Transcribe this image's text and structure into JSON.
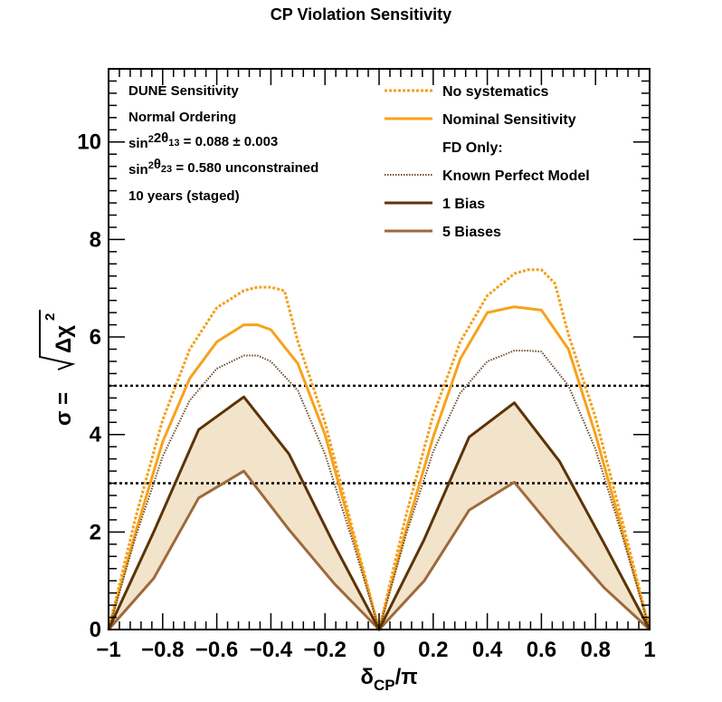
{
  "chart_data": {
    "type": "line",
    "title": "CP Violation Sensitivity",
    "xlabel": {
      "main": "δ",
      "sub": "CP",
      "suffix": "/π"
    },
    "ylabel": {
      "prefix": "σ = ",
      "radicand": "Δχ",
      "sup": "2"
    },
    "xlim": [
      -1,
      1
    ],
    "ylim": [
      0,
      11.5
    ],
    "xticks": [
      -1,
      -0.8,
      -0.6,
      -0.4,
      -0.2,
      0,
      0.2,
      0.4,
      0.6,
      0.8,
      1
    ],
    "xtick_labels": [
      "−1",
      "−0.8",
      "−0.6",
      "−0.4",
      "−0.2",
      "0",
      "0.2",
      "0.4",
      "0.6",
      "0.8",
      "1"
    ],
    "yticks": [
      0,
      2,
      4,
      6,
      8,
      10
    ],
    "ytick_labels": [
      "0",
      "2",
      "4",
      "6",
      "8",
      "10"
    ],
    "reference_lines": [
      3,
      5
    ],
    "info_text": [
      {
        "parts": [
          {
            "t": "DUNE Sensitivity"
          }
        ]
      },
      {
        "parts": [
          {
            "t": "Normal Ordering"
          }
        ]
      },
      {
        "parts": [
          {
            "t": "sin"
          },
          {
            "t": "2",
            "sup": true
          },
          {
            "t": "2θ"
          },
          {
            "t": "13",
            "sub": true
          },
          {
            "t": " = 0.088 ± 0.003"
          }
        ]
      },
      {
        "parts": [
          {
            "t": "sin"
          },
          {
            "t": "2",
            "sup": true
          },
          {
            "t": "θ"
          },
          {
            "t": "23",
            "sub": true
          },
          {
            "t": " = 0.580 unconstrained"
          }
        ]
      },
      {
        "parts": [
          {
            "t": "10 years (staged)"
          }
        ]
      }
    ],
    "legend": [
      {
        "label": "No systematics",
        "color": "#f2a01e",
        "style": "dotted",
        "series": "no_syst"
      },
      {
        "label": "Nominal Sensitivity",
        "color": "#f7a21b",
        "style": "solid",
        "series": "nominal"
      },
      {
        "label": "FD Only:",
        "header": true
      },
      {
        "label": "Known Perfect Model",
        "color": "#6b4e2e",
        "style": "fine-dotted",
        "series": "perfect"
      },
      {
        "label": "1 Bias",
        "color": "#5c3306",
        "style": "solid",
        "series": "bias1"
      },
      {
        "label": "5 Biases",
        "color": "#9c6a3b",
        "style": "solid",
        "series": "bias5"
      }
    ],
    "band": {
      "between": [
        "bias1",
        "bias5"
      ],
      "color": "#f2e3cb"
    },
    "series": [
      {
        "id": "no_syst",
        "name": "No systematics",
        "color": "#f2a01e",
        "style": "dotted",
        "x": [
          -1,
          -0.9,
          -0.8,
          -0.7,
          -0.6,
          -0.5,
          -0.45,
          -0.4,
          -0.35,
          -0.3,
          -0.2,
          -0.1,
          0,
          0.1,
          0.2,
          0.3,
          0.4,
          0.5,
          0.55,
          0.6,
          0.65,
          0.7,
          0.8,
          0.9,
          1
        ],
        "y": [
          0,
          2.3,
          4.3,
          5.75,
          6.6,
          6.95,
          7.02,
          7.02,
          6.95,
          5.9,
          4.25,
          2.1,
          0,
          2.35,
          4.4,
          5.9,
          6.85,
          7.3,
          7.38,
          7.38,
          7.1,
          6.05,
          4.35,
          2.2,
          0
        ]
      },
      {
        "id": "nominal",
        "name": "Nominal Sensitivity",
        "color": "#f7a21b",
        "style": "solid",
        "x": [
          -1,
          -0.9,
          -0.8,
          -0.7,
          -0.6,
          -0.5,
          -0.45,
          -0.4,
          -0.3,
          -0.2,
          -0.1,
          0,
          0.1,
          0.2,
          0.3,
          0.4,
          0.5,
          0.6,
          0.7,
          0.8,
          0.9,
          1
        ],
        "y": [
          0,
          2.0,
          3.85,
          5.15,
          5.9,
          6.25,
          6.25,
          6.15,
          5.45,
          4.0,
          2.0,
          0,
          2.05,
          3.95,
          5.55,
          6.5,
          6.62,
          6.55,
          5.75,
          4.0,
          2.0,
          0
        ]
      },
      {
        "id": "perfect",
        "name": "Known Perfect Model",
        "color": "#6b4e2e",
        "style": "fine-dotted",
        "x": [
          -1,
          -0.9,
          -0.8,
          -0.7,
          -0.6,
          -0.5,
          -0.45,
          -0.4,
          -0.3,
          -0.2,
          -0.1,
          0,
          0.1,
          0.2,
          0.3,
          0.4,
          0.5,
          0.55,
          0.6,
          0.7,
          0.8,
          0.9,
          1
        ],
        "y": [
          0,
          1.9,
          3.55,
          4.7,
          5.35,
          5.62,
          5.62,
          5.5,
          4.9,
          3.6,
          1.85,
          0,
          1.95,
          3.65,
          4.85,
          5.5,
          5.72,
          5.72,
          5.7,
          5.0,
          3.7,
          1.9,
          0
        ]
      },
      {
        "id": "bias1",
        "name": "1 Bias",
        "color": "#5c3306",
        "style": "solid",
        "x": [
          -1,
          -0.833,
          -0.667,
          -0.5,
          -0.333,
          -0.167,
          0,
          0.167,
          0.333,
          0.5,
          0.667,
          0.833,
          1
        ],
        "y": [
          0,
          2.0,
          4.1,
          4.77,
          3.6,
          1.75,
          0,
          1.85,
          3.95,
          4.65,
          3.45,
          1.75,
          0
        ]
      },
      {
        "id": "bias5",
        "name": "5 Biases",
        "color": "#9c6a3b",
        "style": "solid",
        "x": [
          -1,
          -0.833,
          -0.667,
          -0.5,
          -0.333,
          -0.167,
          0,
          0.167,
          0.333,
          0.5,
          0.667,
          0.833,
          1
        ],
        "y": [
          0,
          1.05,
          2.7,
          3.25,
          2.05,
          0.95,
          0,
          1.0,
          2.45,
          3.02,
          1.9,
          0.85,
          0
        ]
      }
    ]
  }
}
